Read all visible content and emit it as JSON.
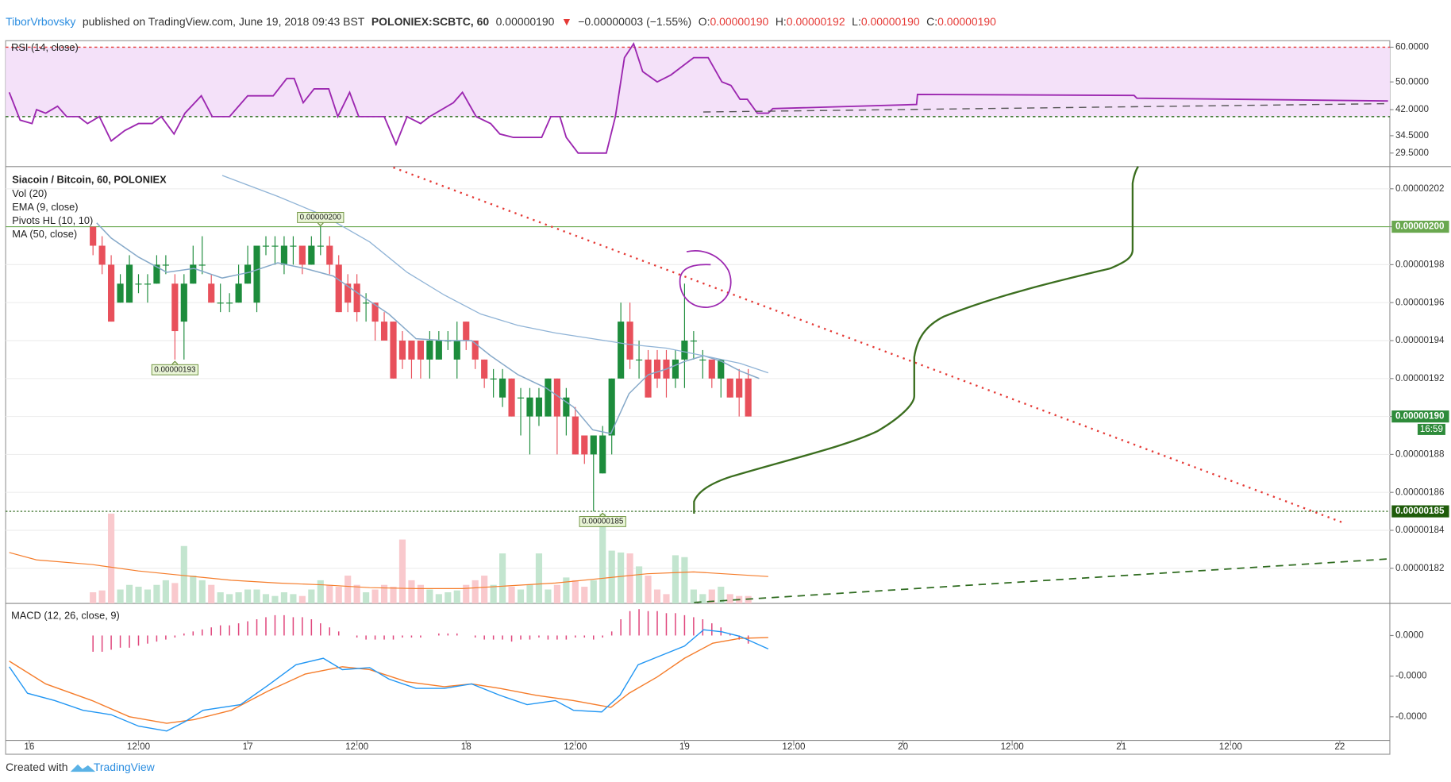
{
  "header": {
    "author": "TiborVrbovsky",
    "published": "published on TradingView.com, June 19, 2018 09:43 BST",
    "symbol": "POLONIEX:SCBTC, 60",
    "last": "0.00000190",
    "arrow": "▼",
    "change": "−0.00000003 (−1.55%)",
    "ohlc": [
      {
        "label": "O:",
        "value": "0.00000190"
      },
      {
        "label": "H:",
        "value": "0.00000192"
      },
      {
        "label": "L:",
        "value": "0.00000190"
      },
      {
        "label": "C:",
        "value": "0.00000190"
      }
    ]
  },
  "chart_data": {
    "type": "candlestick",
    "xlim": [
      -2.6,
      149.5
    ],
    "xticks": [
      {
        "value": 0,
        "label": "16"
      },
      {
        "value": 12,
        "label": "12:00"
      },
      {
        "value": 24,
        "label": "17"
      },
      {
        "value": 36,
        "label": "12:00"
      },
      {
        "value": 48,
        "label": "18"
      },
      {
        "value": 60,
        "label": "12:00"
      },
      {
        "value": 72,
        "label": "19"
      },
      {
        "value": 84,
        "label": "12:00"
      },
      {
        "value": 96,
        "label": "20"
      },
      {
        "value": 108,
        "label": "12:00"
      },
      {
        "value": 120,
        "label": "21"
      },
      {
        "value": 132,
        "label": "12:00"
      },
      {
        "value": 144,
        "label": "22"
      }
    ],
    "rsi": {
      "legend": "RSI (14, close)",
      "ylim": [
        25.6,
        61.87
      ],
      "yticks": [
        {
          "value": 60,
          "label": "60.0000"
        },
        {
          "value": 50,
          "label": "50.0000"
        },
        {
          "value": 42,
          "label": "42.0000"
        },
        {
          "value": 34.5,
          "label": "34.5000"
        },
        {
          "value": 29.5,
          "label": "29.5000"
        }
      ],
      "bands": [
        40,
        60
      ],
      "band_colors": [
        "#2e6b1f",
        "#e53935"
      ],
      "fill": "#f4e1f9",
      "color": "#9c27b0",
      "x": [
        -2.2,
        -1.0,
        0.3,
        0.8,
        1.8,
        3.1,
        4.1,
        5.4,
        6.4,
        7.7,
        9.0,
        10.5,
        12.0,
        13.5,
        14.5,
        15.9,
        17.1,
        18.9,
        20.1,
        22.0,
        24.0,
        26.8,
        28.3,
        29.1,
        30.1,
        31.3,
        32.9,
        33.9,
        35.2,
        36.2,
        39.0,
        40.3,
        41.5,
        43.0,
        44.0,
        46.6,
        47.6,
        49.1,
        50.7,
        51.7,
        53.2,
        56.3,
        57.3,
        58.3,
        59.0,
        60.3,
        63.4,
        64.4,
        65.4,
        66.4,
        67.4,
        69.0,
        70.5,
        73.0,
        74.6,
        76.1,
        77.1,
        78.1,
        78.9,
        80.0,
        81.2,
        81.7,
        97.5,
        97.6,
        121.4,
        121.7,
        149.3
      ],
      "values": [
        47,
        39,
        38,
        42,
        41,
        43,
        40,
        40,
        38,
        40,
        33,
        36,
        38,
        38,
        40,
        35,
        41,
        46,
        40,
        40,
        46,
        46,
        51,
        51,
        44,
        48,
        48,
        40,
        47,
        40,
        40,
        32,
        40,
        38,
        40,
        44,
        47,
        40,
        38,
        35,
        34,
        34,
        40,
        40,
        34,
        29.5,
        29.5,
        40,
        57,
        61,
        53,
        50,
        52,
        57,
        57,
        50,
        49,
        45,
        45,
        41,
        41,
        42.3,
        43.5,
        46.4,
        46.1,
        45.3,
        44.5
      ]
    },
    "price": {
      "legend": [
        "Siacoin / Bitcoin, 60, POLONIEX",
        "Vol (20)",
        "EMA (9, close)",
        "Pivots HL (10, 10)",
        "MA (50, close)"
      ],
      "ylim": [
        1.8015e-06,
        2.0317e-06
      ],
      "yticks": [
        {
          "value": 1.82e-06,
          "label": "0.00000182"
        },
        {
          "value": 1.84e-06,
          "label": "0.00000184"
        },
        {
          "value": 1.86e-06,
          "label": "0.00000186"
        },
        {
          "value": 1.88e-06,
          "label": "0.00000188"
        },
        {
          "value": 1.9e-06,
          "label": "0.00000190"
        },
        {
          "value": 1.92e-06,
          "label": "0.00000192"
        },
        {
          "value": 1.94e-06,
          "label": "0.00000194"
        },
        {
          "value": 1.96e-06,
          "label": "0.00000196"
        },
        {
          "value": 1.98e-06,
          "label": "0.00000198"
        },
        {
          "value": 2e-06,
          "label": "0.00000200"
        },
        {
          "value": 2.02e-06,
          "label": "0.00000202"
        }
      ],
      "grid": true,
      "up_color": "#1d8c3c",
      "down_color": "#e8505b",
      "x": [
        7,
        8,
        9,
        10,
        11,
        12,
        13,
        14,
        15,
        16,
        17,
        18,
        19,
        20,
        21,
        22,
        23,
        24,
        25,
        26,
        27,
        28,
        29,
        30,
        31,
        32,
        33,
        34,
        35,
        36,
        37,
        38,
        39,
        40,
        41,
        42,
        43,
        44,
        45,
        46,
        47,
        48,
        49,
        50,
        51,
        52,
        53,
        54,
        55,
        56,
        57,
        58,
        59,
        60,
        61,
        62,
        63,
        64,
        65,
        66,
        67,
        68,
        69,
        70,
        71,
        72,
        73,
        74,
        75,
        76,
        77,
        78,
        79
      ],
      "open": [
        2e-06,
        1.99e-06,
        1.98e-06,
        1.96e-06,
        1.96e-06,
        1.97e-06,
        1.97e-06,
        1.97e-06,
        1.98e-06,
        1.97e-06,
        1.95e-06,
        1.97e-06,
        1.98e-06,
        1.97e-06,
        1.96e-06,
        1.96e-06,
        1.96e-06,
        1.97e-06,
        1.96e-06,
        1.99e-06,
        1.99e-06,
        1.98e-06,
        1.99e-06,
        1.99e-06,
        1.98e-06,
        1.99e-06,
        1.99e-06,
        1.98e-06,
        1.97e-06,
        1.97e-06,
        1.96e-06,
        1.96e-06,
        1.95e-06,
        1.95e-06,
        1.94e-06,
        1.94e-06,
        1.94e-06,
        1.93e-06,
        1.93e-06,
        1.94e-06,
        1.93e-06,
        1.95e-06,
        1.94e-06,
        1.93e-06,
        1.92e-06,
        1.91e-06,
        1.92e-06,
        1.91e-06,
        1.9e-06,
        1.9e-06,
        1.9e-06,
        1.92e-06,
        1.9e-06,
        1.9e-06,
        1.89e-06,
        1.88e-06,
        1.87e-06,
        1.89e-06,
        1.92e-06,
        1.95e-06,
        1.93e-06,
        1.93e-06,
        1.93e-06,
        1.93e-06,
        1.92e-06,
        1.93e-06,
        1.94e-06,
        1.93e-06,
        1.93e-06,
        1.92e-06,
        1.92e-06,
        1.92e-06,
        1.92e-06
      ],
      "high": [
        2e-06,
        1.995e-06,
        1.985e-06,
        1.975e-06,
        1.985e-06,
        1.975e-06,
        1.975e-06,
        1.985e-06,
        1.985e-06,
        1.975e-06,
        1.975e-06,
        1.99e-06,
        1.995e-06,
        1.975e-06,
        1.97e-06,
        1.965e-06,
        1.98e-06,
        1.99e-06,
        1.99e-06,
        1.995e-06,
        1.995e-06,
        1.995e-06,
        1.995e-06,
        1.99e-06,
        1.995e-06,
        2e-06,
        1.995e-06,
        1.985e-06,
        1.975e-06,
        1.975e-06,
        1.965e-06,
        1.96e-06,
        1.955e-06,
        1.95e-06,
        1.945e-06,
        1.94e-06,
        1.94e-06,
        1.945e-06,
        1.945e-06,
        1.945e-06,
        1.95e-06,
        1.95e-06,
        1.94e-06,
        1.93e-06,
        1.925e-06,
        1.925e-06,
        1.92e-06,
        1.915e-06,
        1.915e-06,
        1.915e-06,
        1.92e-06,
        1.92e-06,
        1.915e-06,
        1.905e-06,
        1.89e-06,
        1.89e-06,
        1.895e-06,
        1.92e-06,
        1.96e-06,
        1.96e-06,
        1.94e-06,
        1.935e-06,
        1.935e-06,
        1.935e-06,
        1.935e-06,
        1.97e-06,
        1.945e-06,
        1.935e-06,
        1.93e-06,
        1.93e-06,
        1.92e-06,
        1.925e-06,
        1.925e-06
      ],
      "low": [
        1.985e-06,
        1.975e-06,
        1.95e-06,
        1.96e-06,
        1.96e-06,
        1.965e-06,
        1.96e-06,
        1.97e-06,
        1.975e-06,
        1.93e-06,
        1.93e-06,
        1.97e-06,
        1.975e-06,
        1.96e-06,
        1.955e-06,
        1.955e-06,
        1.96e-06,
        1.97e-06,
        1.955e-06,
        1.985e-06,
        1.98e-06,
        1.975e-06,
        1.98e-06,
        1.975e-06,
        1.98e-06,
        1.985e-06,
        1.975e-06,
        1.955e-06,
        1.955e-06,
        1.95e-06,
        1.95e-06,
        1.94e-06,
        1.94e-06,
        1.92e-06,
        1.925e-06,
        1.92e-06,
        1.92e-06,
        1.92e-06,
        1.93e-06,
        1.935e-06,
        1.92e-06,
        1.935e-06,
        1.925e-06,
        1.915e-06,
        1.91e-06,
        1.905e-06,
        1.9e-06,
        1.89e-06,
        1.88e-06,
        1.895e-06,
        1.9e-06,
        1.88e-06,
        1.89e-06,
        1.88e-06,
        1.875e-06,
        1.85e-06,
        1.87e-06,
        1.88e-06,
        1.92e-06,
        1.925e-06,
        1.92e-06,
        1.91e-06,
        1.915e-06,
        1.91e-06,
        1.915e-06,
        1.915e-06,
        1.93e-06,
        1.92e-06,
        1.915e-06,
        1.91e-06,
        1.91e-06,
        1.9e-06,
        1.9e-06
      ],
      "close": [
        1.99e-06,
        1.98e-06,
        1.95e-06,
        1.97e-06,
        1.98e-06,
        1.97e-06,
        1.97e-06,
        1.98e-06,
        1.98e-06,
        1.945e-06,
        1.97e-06,
        1.98e-06,
        1.98e-06,
        1.96e-06,
        1.96e-06,
        1.96e-06,
        1.97e-06,
        1.98e-06,
        1.99e-06,
        1.99e-06,
        1.99e-06,
        1.99e-06,
        1.99e-06,
        1.98e-06,
        1.99e-06,
        1.99e-06,
        1.98e-06,
        1.955e-06,
        1.96e-06,
        1.955e-06,
        1.96e-06,
        1.95e-06,
        1.94e-06,
        1.92e-06,
        1.93e-06,
        1.93e-06,
        1.93e-06,
        1.94e-06,
        1.94e-06,
        1.94e-06,
        1.94e-06,
        1.94e-06,
        1.93e-06,
        1.92e-06,
        1.92e-06,
        1.92e-06,
        1.9e-06,
        1.91e-06,
        1.91e-06,
        1.91e-06,
        1.92e-06,
        1.9e-06,
        1.91e-06,
        1.88e-06,
        1.88e-06,
        1.89e-06,
        1.89e-06,
        1.92e-06,
        1.95e-06,
        1.93e-06,
        1.93e-06,
        1.91e-06,
        1.92e-06,
        1.92e-06,
        1.93e-06,
        1.94e-06,
        1.94e-06,
        1.93e-06,
        1.92e-06,
        1.93e-06,
        1.91e-06,
        1.91e-06,
        1.9e-06
      ],
      "ema": {
        "color": "#86a9c9",
        "x": [
          7.4,
          9.0,
          12.0,
          15.1,
          18.1,
          21.2,
          24.2,
          27.3,
          30.3,
          33.4,
          36.4,
          39.5,
          42.5,
          45.6,
          48.6,
          50.7,
          53.7,
          56.8,
          59.8,
          61.9,
          63.9,
          65.9,
          68.0,
          70.0,
          72.0,
          74.1,
          76.1,
          78.1,
          80.2
        ],
        "values": [
          2.002e-06,
          1.994e-06,
          1.984e-06,
          1.976e-06,
          1.978e-06,
          1.973e-06,
          1.976e-06,
          1.981e-06,
          1.978e-06,
          1.974e-06,
          1.964e-06,
          1.954e-06,
          1.941e-06,
          1.94e-06,
          1.94e-06,
          1.932e-06,
          1.922e-06,
          1.915e-06,
          1.905e-06,
          1.893e-06,
          1.891e-06,
          1.912e-06,
          1.922e-06,
          1.925e-06,
          1.929e-06,
          1.932e-06,
          1.929e-06,
          1.924e-06,
          1.92e-06
        ]
      },
      "ma": {
        "color": "#8fb3d6",
        "x": [
          21.2,
          27.3,
          32.3,
          37.4,
          41.5,
          45.6,
          49.6,
          53.7,
          57.8,
          61.9,
          65.9,
          70.0,
          74.1,
          78.1,
          81.2
        ],
        "values": [
          2.027e-06,
          2.016e-06,
          2.006e-06,
          1.992e-06,
          1.976e-06,
          1.964e-06,
          1.954e-06,
          1.948e-06,
          1.944e-06,
          1.941e-06,
          1.938e-06,
          1.936e-06,
          1.932e-06,
          1.928e-06,
          1.923e-06
        ]
      },
      "pivots_high": [
        {
          "x": 32,
          "value": 2e-06,
          "label": "0.00000200"
        }
      ],
      "pivots_low": [
        {
          "x": 16,
          "value": 1.93e-06,
          "label": "0.00000193"
        },
        {
          "x": 63,
          "value": 1.85e-06,
          "label": "0.00000185"
        }
      ],
      "lines": [
        {
          "value": 2e-06,
          "label": "0.00000200",
          "color": "#6aa84f",
          "style": "solid"
        },
        {
          "value": 1.85e-06,
          "label": "0.00000185",
          "color": "#1f5c0b",
          "style": "dotted"
        }
      ],
      "last": {
        "value": 1.9e-06,
        "label": "0.00000190",
        "color": "#2e8b3a",
        "countdown": "16:59"
      }
    },
    "volume": {
      "ylim": [
        0,
        120
      ],
      "up_color": "#c3e5cf",
      "down_color": "#f9c9cd",
      "values": [
        12,
        14,
        97,
        15,
        20,
        18,
        15,
        20,
        25,
        22,
        62,
        30,
        25,
        20,
        12,
        10,
        12,
        15,
        15,
        10,
        8,
        12,
        10,
        8,
        15,
        25,
        20,
        18,
        30,
        20,
        12,
        15,
        20,
        18,
        69,
        25,
        20,
        15,
        10,
        12,
        14,
        20,
        25,
        30,
        20,
        54,
        18,
        15,
        20,
        54,
        15,
        20,
        28,
        25,
        18,
        25,
        97,
        57,
        55,
        54,
        40,
        30,
        15,
        10,
        52,
        50,
        15,
        10,
        15,
        18,
        10,
        8,
        8
      ],
      "ma": {
        "color": "#f57c2a",
        "x": [
          -2.2,
          0.8,
          6.9,
          12.0,
          17.1,
          22.2,
          27.3,
          32.3,
          37.4,
          42.5,
          47.6,
          52.7,
          57.8,
          62.9,
          67.9,
          73.0,
          81.2
        ],
        "values": [
          55,
          47,
          42,
          35,
          30,
          25,
          22,
          20,
          17,
          16,
          16,
          19,
          22,
          27,
          32,
          34,
          29
        ]
      }
    },
    "macd": {
      "legend": "MACD (12, 26, close, 9)",
      "ylim": [
        -2.58e-09,
        7.9e-10
      ],
      "yticks": [
        {
          "value": 0,
          "label": "0.0000"
        },
        {
          "value": -1e-09,
          "label": "-0.0000"
        },
        {
          "value": -2e-09,
          "label": "-0.0000"
        }
      ],
      "macd": {
        "color": "#2196f3",
        "x": [
          -2.2,
          -0.2,
          2.8,
          5.9,
          9.0,
          12.0,
          15.1,
          17.1,
          19.1,
          23.2,
          26.2,
          29.3,
          32.3,
          34.4,
          37.4,
          39.5,
          42.5,
          45.6,
          48.6,
          51.7,
          54.7,
          57.8,
          59.8,
          62.9,
          64.9,
          66.9,
          69.0,
          72.0,
          74.1,
          76.1,
          78.1,
          81.2
        ],
        "values": [
          -7.7e-10,
          -1.42e-09,
          -1.6e-09,
          -1.84e-09,
          -1.95e-09,
          -2.23e-09,
          -2.35e-09,
          -2.12e-09,
          -1.84e-09,
          -1.7e-09,
          -1.23e-09,
          -7.2e-10,
          -5.6e-10,
          -8.4e-10,
          -7.9e-10,
          -1.07e-09,
          -1.3e-09,
          -1.3e-09,
          -1.19e-09,
          -1.47e-09,
          -1.7e-09,
          -1.6e-09,
          -1.84e-09,
          -1.88e-09,
          -1.47e-09,
          -7.2e-10,
          -5.3e-10,
          -2.6e-10,
          1.4e-10,
          9e-11,
          -2e-11,
          -3.3e-10
        ]
      },
      "signal": {
        "color": "#f57c2a",
        "x": [
          -2.2,
          1.8,
          6.9,
          11.0,
          15.1,
          18.1,
          22.2,
          26.2,
          30.3,
          34.4,
          37.4,
          41.5,
          45.6,
          48.6,
          51.7,
          55.7,
          59.8,
          63.9,
          65.9,
          69.0,
          72.0,
          75.1,
          78.1,
          81.2
        ],
        "values": [
          -6.3e-10,
          -1.19e-09,
          -1.6e-09,
          -2e-09,
          -2.16e-09,
          -2.07e-09,
          -1.84e-09,
          -1.37e-09,
          -9.5e-10,
          -7.7e-10,
          -8.4e-10,
          -1.14e-09,
          -1.26e-09,
          -1.19e-09,
          -1.3e-09,
          -1.47e-09,
          -1.6e-09,
          -1.77e-09,
          -1.42e-09,
          -1.02e-09,
          -5.6e-10,
          -1.9e-10,
          -7e-11,
          -5e-11
        ]
      },
      "histogram": {
        "color": "#e0467c",
        "values": [
          -4e-10,
          -4e-10,
          -3.5e-10,
          -3e-10,
          -3e-10,
          -2.5e-10,
          -2e-10,
          -1.5e-10,
          -1e-10,
          -5e-11,
          5e-11,
          1e-10,
          1.5e-10,
          2e-10,
          2.5e-10,
          2.5e-10,
          3e-10,
          3.5e-10,
          4e-10,
          4.5e-10,
          5e-10,
          5e-10,
          4.5e-10,
          4.5e-10,
          4e-10,
          3e-10,
          2e-10,
          1e-10,
          0,
          -5e-11,
          -1e-10,
          -1e-10,
          -1e-10,
          -1e-10,
          -5e-11,
          -5e-11,
          -5e-11,
          0,
          5e-11,
          5e-11,
          5e-11,
          0,
          -5e-11,
          -1e-10,
          -1e-10,
          -1e-10,
          -1.5e-10,
          -1e-10,
          -1e-10,
          -5e-11,
          -1e-10,
          -1e-10,
          -1e-10,
          -5e-11,
          -5e-11,
          -1e-10,
          -5e-11,
          1e-10,
          4e-10,
          6e-10,
          6.5e-10,
          6e-10,
          6e-10,
          5.5e-10,
          5.5e-10,
          5e-10,
          4.5e-10,
          4e-10,
          3e-10,
          2e-10,
          5e-11,
          -1e-10,
          -2e-10
        ]
      }
    }
  },
  "footer": {
    "created": "Created with",
    "brand": "TradingView"
  }
}
